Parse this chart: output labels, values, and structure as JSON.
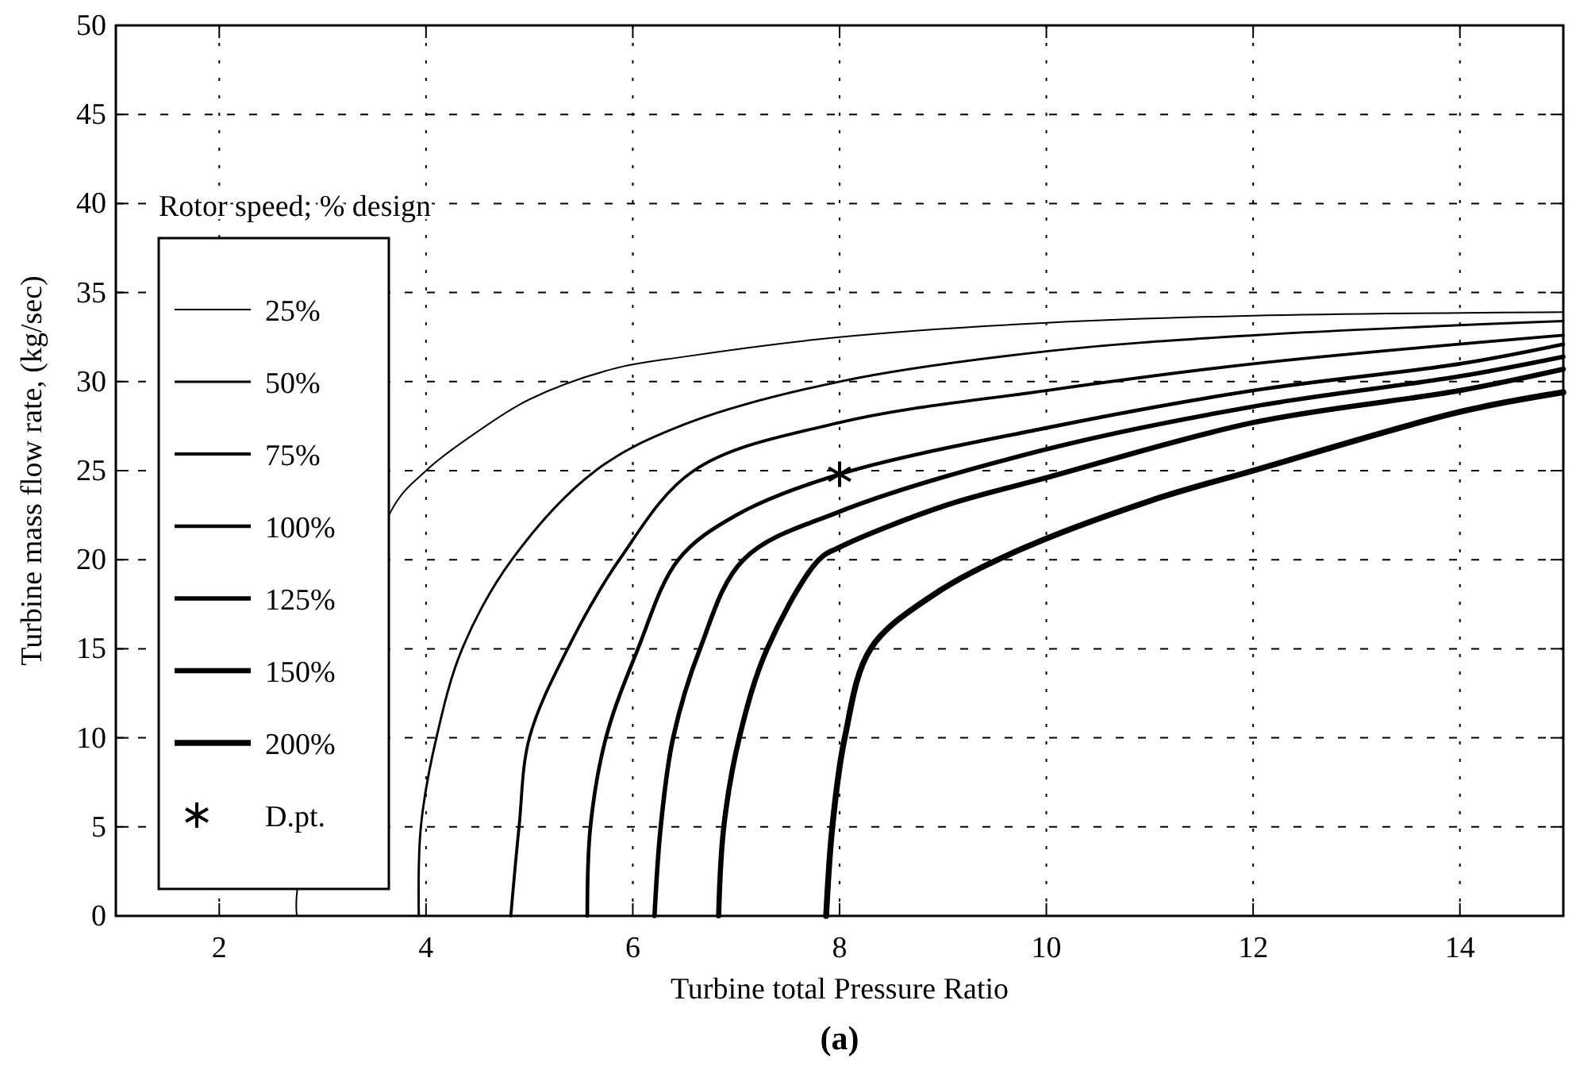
{
  "chart_data": {
    "type": "line",
    "xlabel": "Turbine total Pressure Ratio",
    "ylabel": "Turbine mass flow rate, (kg/sec)",
    "legend_title": "Rotor speed; % design",
    "annotations": [
      "(a)"
    ],
    "xlim": [
      1,
      15
    ],
    "ylim": [
      0,
      50
    ],
    "xticks": [
      2,
      4,
      6,
      8,
      10,
      12,
      14
    ],
    "yticks": [
      0,
      5,
      10,
      15,
      20,
      25,
      30,
      35,
      40,
      45,
      50
    ],
    "grid": true,
    "legend": "left",
    "line_style": "solid",
    "series": [
      {
        "name": "25%",
        "color": "#000000",
        "x": [
          2.75,
          2.755,
          3.65,
          4.0,
          4.5,
          5.0,
          5.8,
          6.5,
          8,
          10,
          12,
          15
        ],
        "values": [
          0,
          1.5,
          22.6,
          25.0,
          27.2,
          29.0,
          30.7,
          31.4,
          32.5,
          33.3,
          33.7,
          33.9
        ]
      },
      {
        "name": "50%",
        "color": "#000000",
        "x": [
          3.93,
          3.95,
          4.1,
          4.35,
          4.83,
          5.64,
          6.5,
          8,
          10,
          12,
          15
        ],
        "values": [
          0,
          5,
          10,
          15,
          20,
          25,
          27.6,
          30.0,
          31.7,
          32.6,
          33.4
        ]
      },
      {
        "name": "75%",
        "color": "#000000",
        "x": [
          4.82,
          4.9,
          5.0,
          5.37,
          5.87,
          6.59,
          8,
          10,
          12,
          15
        ],
        "values": [
          0,
          5,
          10,
          15,
          20,
          25,
          27.7,
          29.5,
          31.0,
          32.6
        ]
      },
      {
        "name": "100%",
        "color": "#000000",
        "x": [
          5.56,
          5.59,
          5.74,
          6.05,
          6.44,
          7.0,
          8,
          10,
          12,
          14,
          15
        ],
        "values": [
          0,
          5,
          10,
          15,
          20,
          22.5,
          24.8,
          27.4,
          29.5,
          31.0,
          32.1
        ]
      },
      {
        "name": "125%",
        "color": "#000000",
        "x": [
          6.21,
          6.27,
          6.39,
          6.65,
          7.07,
          8,
          10,
          12,
          14,
          15
        ],
        "values": [
          0,
          5,
          10,
          15,
          20,
          22.7,
          26.2,
          28.6,
          30.3,
          31.4
        ]
      },
      {
        "name": "150%",
        "color": "#000000",
        "x": [
          6.83,
          6.88,
          7.03,
          7.3,
          7.8,
          8,
          9,
          10,
          12,
          14,
          15
        ],
        "values": [
          0,
          5,
          10,
          15,
          20,
          20.7,
          23.0,
          24.6,
          27.7,
          29.5,
          30.7
        ]
      },
      {
        "name": "200%",
        "color": "#000000",
        "x": [
          7.87,
          7.93,
          8.05,
          8.3,
          8.9,
          9.72,
          11,
          12,
          14,
          15
        ],
        "values": [
          0,
          5,
          10,
          15,
          18.0,
          20.5,
          23.3,
          25.0,
          28.3,
          29.4
        ]
      },
      {
        "name": "D.pt.",
        "type": "scatter",
        "marker": "cross",
        "color": "#000000",
        "x": [
          8
        ],
        "values": [
          24.8
        ]
      }
    ]
  }
}
